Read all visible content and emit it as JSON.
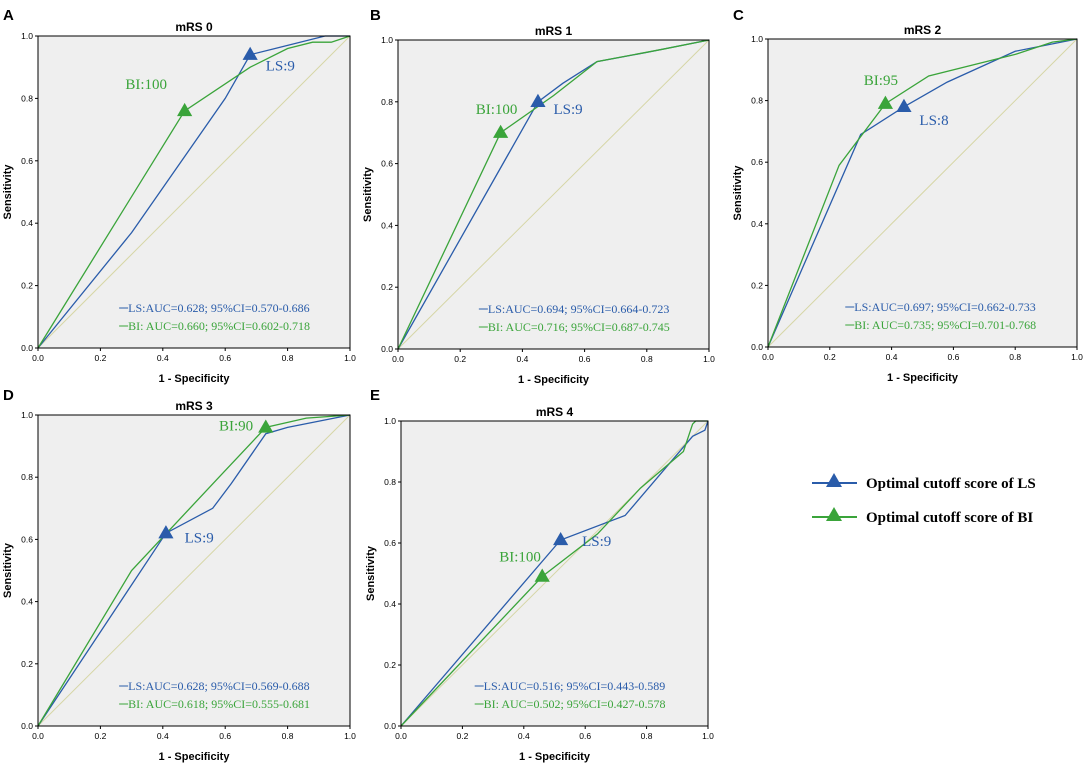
{
  "colors": {
    "ls": "#2a5caa",
    "bi": "#3aa43a",
    "ref": "#d6d6a6",
    "plot_bg": "#efefef",
    "frame": "#000000"
  },
  "axes": {
    "xlabel": "1 - Specificity",
    "ylabel": "Sensitivity",
    "ticks": [
      "0.0",
      "0.2",
      "0.4",
      "0.6",
      "0.8",
      "1.0"
    ],
    "xlim": [
      0,
      1
    ],
    "ylim": [
      0,
      1
    ]
  },
  "legend": {
    "ls_label": "Optimal cutoff score of LS",
    "bi_label": "Optimal cutoff score of BI"
  },
  "chart_data": [
    {
      "letter": "A",
      "title": "mRS 0",
      "type": "line",
      "xlabel": "1 - Specificity",
      "ylabel": "Sensitivity",
      "series": [
        {
          "name": "LS",
          "x": [
            0,
            0.3,
            0.6,
            0.68,
            0.76,
            0.92,
            1.0
          ],
          "y": [
            0,
            0.37,
            0.8,
            0.94,
            0.96,
            1.0,
            1.0
          ]
        },
        {
          "name": "BI",
          "x": [
            0,
            0.47,
            0.68,
            0.8,
            0.88,
            0.94,
            1.0
          ],
          "y": [
            0,
            0.76,
            0.9,
            0.96,
            0.98,
            0.98,
            1.0
          ]
        }
      ],
      "ls_point": [
        0.68,
        0.94
      ],
      "bi_point": [
        0.47,
        0.76
      ],
      "ls_anno": "LS:9",
      "bi_anno": "BI:100",
      "ls_auc": "LS:AUC=0.628; 95%CI=0.570-0.686",
      "bi_auc": "BI: AUC=0.660; 95%CI=0.602-0.718"
    },
    {
      "letter": "B",
      "title": "mRS 1",
      "type": "line",
      "xlabel": "1 - Specificity",
      "ylabel": "Sensitivity",
      "series": [
        {
          "name": "LS",
          "x": [
            0,
            0.45,
            0.53,
            0.64,
            0.8,
            1.0
          ],
          "y": [
            0,
            0.8,
            0.86,
            0.93,
            0.96,
            1.0
          ]
        },
        {
          "name": "BI",
          "x": [
            0,
            0.33,
            0.5,
            0.64,
            0.85,
            1.0
          ],
          "y": [
            0,
            0.7,
            0.82,
            0.93,
            0.97,
            1.0
          ]
        }
      ],
      "ls_point": [
        0.45,
        0.8
      ],
      "bi_point": [
        0.33,
        0.7
      ],
      "ls_anno": "LS:9",
      "bi_anno": "BI:100",
      "ls_auc": "LS:AUC=0.694; 95%CI=0.664-0.723",
      "bi_auc": "BI: AUC=0.716; 95%CI=0.687-0.745"
    },
    {
      "letter": "C",
      "title": "mRS 2",
      "type": "line",
      "xlabel": "1 - Specificity",
      "ylabel": "Sensitivity",
      "series": [
        {
          "name": "LS",
          "x": [
            0,
            0.3,
            0.44,
            0.58,
            0.8,
            1.0
          ],
          "y": [
            0,
            0.69,
            0.78,
            0.86,
            0.96,
            1.0
          ]
        },
        {
          "name": "BI",
          "x": [
            0,
            0.23,
            0.38,
            0.52,
            0.8,
            0.92,
            1.0
          ],
          "y": [
            0,
            0.59,
            0.79,
            0.88,
            0.95,
            0.99,
            1.0
          ]
        }
      ],
      "ls_point": [
        0.44,
        0.78
      ],
      "bi_point": [
        0.38,
        0.79
      ],
      "ls_anno": "LS:8",
      "bi_anno": "BI:95",
      "ls_auc": "LS:AUC=0.697; 95%CI=0.662-0.733",
      "bi_auc": "BI: AUC=0.735; 95%CI=0.701-0.768"
    },
    {
      "letter": "D",
      "title": "mRS 3",
      "type": "line",
      "xlabel": "1 - Specificity",
      "ylabel": "Sensitivity",
      "series": [
        {
          "name": "LS",
          "x": [
            0,
            0.41,
            0.56,
            0.62,
            0.73,
            0.8,
            1.0
          ],
          "y": [
            0,
            0.62,
            0.7,
            0.78,
            0.94,
            0.96,
            1.0
          ]
        },
        {
          "name": "BI",
          "x": [
            0,
            0.3,
            0.58,
            0.73,
            0.86,
            1.0
          ],
          "y": [
            0,
            0.5,
            0.8,
            0.96,
            0.99,
            1.0
          ]
        }
      ],
      "ls_point": [
        0.41,
        0.62
      ],
      "bi_point": [
        0.73,
        0.96
      ],
      "ls_anno": "LS:9",
      "bi_anno": "BI:90",
      "ls_auc": "LS:AUC=0.628; 95%CI=0.569-0.688",
      "bi_auc": "BI: AUC=0.618; 95%CI=0.555-0.681"
    },
    {
      "letter": "E",
      "title": "mRS 4",
      "type": "line",
      "xlabel": "1 - Specificity",
      "ylabel": "Sensitivity",
      "series": [
        {
          "name": "LS",
          "x": [
            0,
            0.52,
            0.73,
            0.95,
            0.99,
            1.0
          ],
          "y": [
            0,
            0.61,
            0.69,
            0.95,
            0.97,
            1.0
          ]
        },
        {
          "name": "BI",
          "x": [
            0,
            0.46,
            0.64,
            0.78,
            0.92,
            0.95,
            0.96,
            1.0
          ],
          "y": [
            0,
            0.49,
            0.63,
            0.78,
            0.9,
            0.99,
            1.0,
            1.0
          ]
        }
      ],
      "ls_point": [
        0.52,
        0.61
      ],
      "bi_point": [
        0.46,
        0.49
      ],
      "ls_anno": "LS:9",
      "bi_anno": "BI:100",
      "ls_auc": "LS:AUC=0.516; 95%CI=0.443-0.589",
      "bi_auc": "BI: AUC=0.502; 95%CI=0.427-0.578"
    }
  ]
}
